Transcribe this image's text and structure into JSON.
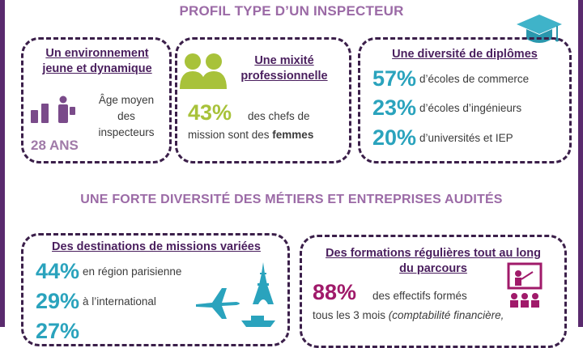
{
  "header": {
    "title": "PROFIL TYPE D’UN INSPECTEUR",
    "subtitle": "UNE FORTE DIVERSITÉ DES MÉTIERS ET ENTREPRISES AUDITÉS"
  },
  "box1": {
    "title": "Un environnement jeune et dynamique",
    "age_text": "Âge moyen des inspecteurs",
    "age_value": "28 ANS"
  },
  "box2": {
    "title": "Une mixité professionnelle",
    "pct": "43%",
    "text_line1": "des chefs de",
    "text_line2_prefix": "mission sont des ",
    "text_line2_bold": "femmes"
  },
  "box3": {
    "title": "Une diversité de diplômes",
    "rows": [
      {
        "pct": "57%",
        "label": "d’écoles de commerce"
      },
      {
        "pct": "23%",
        "label": "d’écoles d’ingénieurs"
      },
      {
        "pct": "20%",
        "label": "d’universités et IEP"
      }
    ]
  },
  "box4": {
    "title": "Des destinations de missions variées",
    "rows": [
      {
        "pct": "44%",
        "label": "en région parisienne"
      },
      {
        "pct": "29%",
        "label": "à l’international"
      },
      {
        "pct": "27%",
        "label": ""
      }
    ]
  },
  "box5": {
    "title_line1": "Des formations régulières tout au long",
    "title_line2": "du parcours",
    "pct": "88%",
    "text_line1": "des effectifs formés",
    "text_line2_prefix": "tous les 3 mois ",
    "text_line2_italic": "(comptabilité financière,"
  },
  "colors": {
    "accent_purple": "#5a2a6e",
    "heading_mauve": "#9b6aa6",
    "teal": "#2aa3bd",
    "lime": "#a8c23a",
    "wine": "#a01a6a"
  },
  "icons": [
    "graduation-cap-icon",
    "people-chart-icon",
    "women-icon",
    "airplane-icon",
    "eiffel-tower-icon",
    "ship-icon",
    "presentation-icon"
  ]
}
